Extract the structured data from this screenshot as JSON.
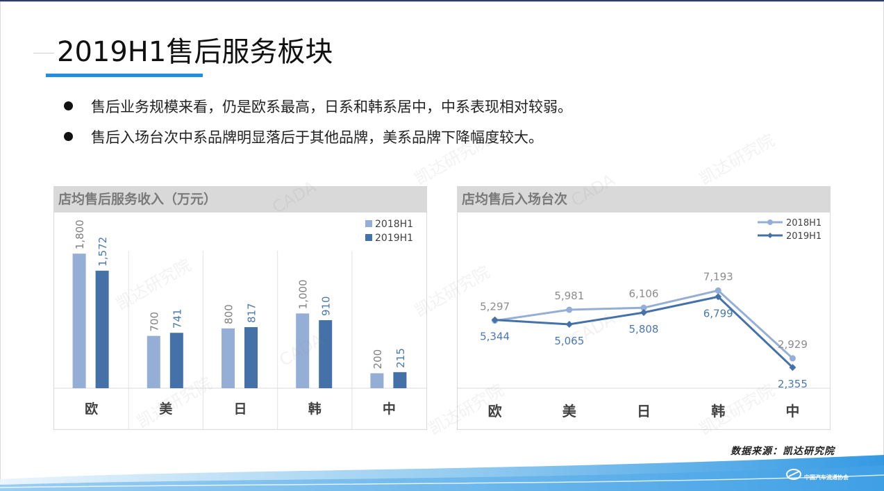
{
  "page": {
    "title": "2019H1售后服务板块",
    "bullets": [
      "售后业务规模来看，仍是欧系最高，日系和韩系居中，中系表现相对较弱。",
      "售后入场台次中系品牌明显落后于其他品牌，美系品牌下降幅度较大。"
    ],
    "source": "数据来源：凯达研究院",
    "logo_text": "中国汽车流通协会",
    "watermarks": [
      "凯达研究院",
      "CADA"
    ],
    "colors": {
      "accent": "#1f8fe0",
      "series_2018": "#95aed6",
      "series_2019": "#4472a8",
      "header_bg": "#d9d9d9"
    }
  },
  "chart_data": [
    {
      "type": "bar",
      "title": "店均售后服务收入（万元）",
      "categories": [
        "欧",
        "美",
        "日",
        "韩",
        "中"
      ],
      "series": [
        {
          "name": "2018H1",
          "values": [
            1800,
            700,
            800,
            1000,
            200
          ],
          "labels": [
            "1,800",
            "700",
            "800",
            "1,000",
            "200"
          ]
        },
        {
          "name": "2019H1",
          "values": [
            1572,
            741,
            817,
            910,
            215
          ],
          "labels": [
            "1,572",
            "741",
            "817",
            "910",
            "215"
          ]
        }
      ],
      "ylim": [
        0,
        2350
      ],
      "grid": false,
      "legend": "top-right"
    },
    {
      "type": "line",
      "title": "店均售后入场台次",
      "categories": [
        "欧",
        "美",
        "日",
        "韩",
        "中"
      ],
      "series": [
        {
          "name": "2018H1",
          "values": [
            5297,
            5981,
            6106,
            7193,
            2929
          ],
          "labels": [
            "5,297",
            "5,981",
            "6,106",
            "7,193",
            "2,929"
          ]
        },
        {
          "name": "2019H1",
          "values": [
            5344,
            5065,
            5808,
            6799,
            2355
          ],
          "labels": [
            "5,344",
            "5,065",
            "5,808",
            "6,799",
            "2,355"
          ]
        }
      ],
      "ylim": [
        0,
        10000
      ],
      "grid": false,
      "legend": "top-right"
    }
  ]
}
